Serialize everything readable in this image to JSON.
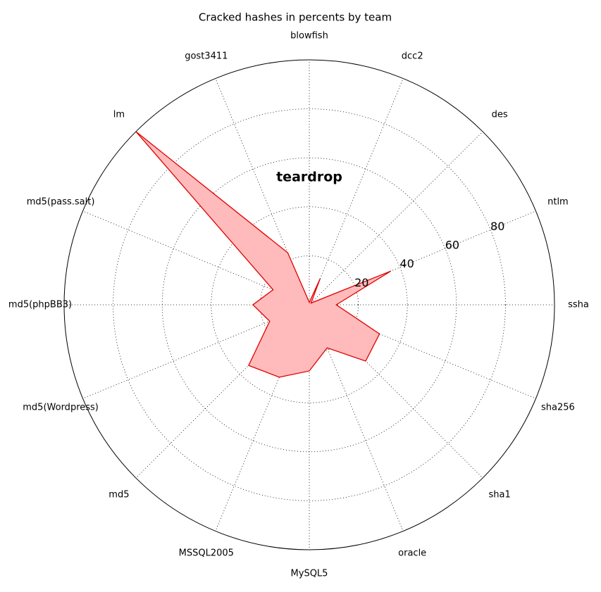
{
  "chart_data": {
    "type": "radar",
    "title": "Cracked hashes in percents by team",
    "categories": [
      "ssha",
      "ntlm",
      "des",
      "dcc2",
      "blowfish",
      "gost3411",
      "lm",
      "md5(pass.salt)",
      "md5(phpBB3)",
      "md5(Wordpress)",
      "md5",
      "MSSQL2005",
      "MySQL5",
      "oracle",
      "sha1",
      "sha256"
    ],
    "series": [
      {
        "name": "teardrop",
        "color": "#e00000",
        "fill": "#ffbbbb",
        "values": [
          11,
          36,
          1,
          11.5,
          1,
          23,
          100,
          16,
          23,
          17.5,
          35,
          32,
          27,
          19,
          32.5,
          31
        ]
      }
    ],
    "ylim": [
      0,
      100
    ],
    "yticks": [
      20,
      40,
      60,
      80
    ],
    "grid": true
  }
}
